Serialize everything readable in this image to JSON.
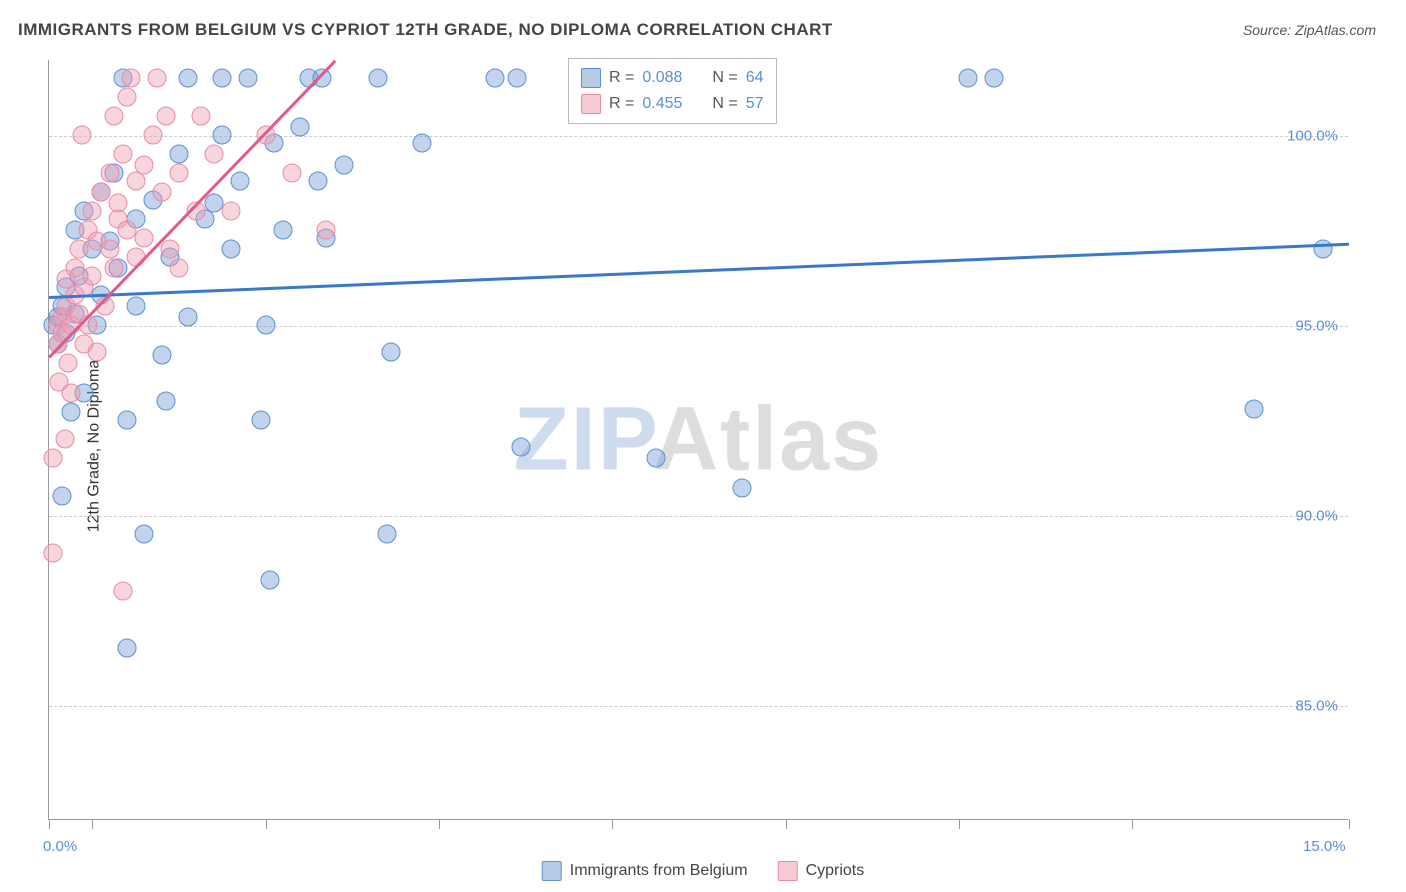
{
  "title": "IMMIGRANTS FROM BELGIUM VS CYPRIOT 12TH GRADE, NO DIPLOMA CORRELATION CHART",
  "source_label": "Source: ZipAtlas.com",
  "ylabel": "12th Grade, No Diploma",
  "watermark": {
    "part1": "ZIP",
    "part2": "Atlas"
  },
  "chart": {
    "type": "scatter",
    "background_color": "#ffffff",
    "grid_color": "#cccccc",
    "axis_color": "#999999",
    "xlim": [
      0,
      15
    ],
    "ylim": [
      82,
      102
    ],
    "xtick_positions": [
      0,
      0.5,
      2.5,
      4.5,
      6.5,
      8.5,
      10.5,
      12.5,
      15
    ],
    "xaxis_labels": [
      {
        "value": 0,
        "text": "0.0%"
      },
      {
        "value": 15,
        "text": "15.0%"
      }
    ],
    "ytick_labels": [
      {
        "value": 85,
        "text": "85.0%"
      },
      {
        "value": 90,
        "text": "90.0%"
      },
      {
        "value": 95,
        "text": "95.0%"
      },
      {
        "value": 100,
        "text": "100.0%"
      }
    ],
    "series": [
      {
        "name": "Immigrants from Belgium",
        "color": "#5b8fd6",
        "fill": "rgba(120,160,210,0.45)",
        "marker_radius": 9.5,
        "R": "0.088",
        "N": "64",
        "trend": {
          "x1": 0,
          "y1": 95.8,
          "x2": 15,
          "y2": 97.2,
          "color": "#3b78c9",
          "width": 2.5
        },
        "points": [
          [
            0.05,
            95.0
          ],
          [
            0.1,
            94.5
          ],
          [
            0.1,
            95.2
          ],
          [
            0.15,
            90.5
          ],
          [
            0.15,
            95.5
          ],
          [
            0.2,
            96.0
          ],
          [
            0.2,
            94.8
          ],
          [
            0.25,
            92.7
          ],
          [
            0.3,
            97.5
          ],
          [
            0.3,
            95.3
          ],
          [
            0.35,
            96.3
          ],
          [
            0.4,
            93.2
          ],
          [
            0.4,
            98.0
          ],
          [
            0.5,
            97.0
          ],
          [
            0.55,
            95.0
          ],
          [
            0.6,
            95.8
          ],
          [
            0.6,
            98.5
          ],
          [
            0.7,
            97.2
          ],
          [
            0.75,
            99.0
          ],
          [
            0.8,
            96.5
          ],
          [
            0.85,
            101.5
          ],
          [
            0.9,
            86.5
          ],
          [
            0.9,
            92.5
          ],
          [
            1.0,
            97.8
          ],
          [
            1.0,
            95.5
          ],
          [
            1.1,
            89.5
          ],
          [
            1.2,
            98.3
          ],
          [
            1.3,
            94.2
          ],
          [
            1.35,
            93.0
          ],
          [
            1.4,
            96.8
          ],
          [
            1.5,
            99.5
          ],
          [
            1.6,
            101.5
          ],
          [
            1.6,
            95.2
          ],
          [
            1.8,
            97.8
          ],
          [
            1.9,
            98.2
          ],
          [
            2.0,
            101.5
          ],
          [
            2.0,
            100.0
          ],
          [
            2.1,
            97.0
          ],
          [
            2.2,
            98.8
          ],
          [
            2.3,
            101.5
          ],
          [
            2.45,
            92.5
          ],
          [
            2.5,
            95.0
          ],
          [
            2.55,
            88.3
          ],
          [
            2.6,
            99.8
          ],
          [
            2.7,
            97.5
          ],
          [
            2.9,
            100.2
          ],
          [
            3.0,
            101.5
          ],
          [
            3.1,
            98.8
          ],
          [
            3.15,
            101.5
          ],
          [
            3.2,
            97.3
          ],
          [
            3.4,
            99.2
          ],
          [
            3.8,
            101.5
          ],
          [
            3.9,
            89.5
          ],
          [
            3.95,
            94.3
          ],
          [
            4.3,
            99.8
          ],
          [
            5.15,
            101.5
          ],
          [
            5.4,
            101.5
          ],
          [
            5.45,
            91.8
          ],
          [
            7.0,
            91.5
          ],
          [
            8.0,
            90.7
          ],
          [
            10.6,
            101.5
          ],
          [
            10.9,
            101.5
          ],
          [
            13.9,
            92.8
          ],
          [
            14.7,
            97.0
          ]
        ]
      },
      {
        "name": "Cypriots",
        "color": "#e88ba5",
        "fill": "rgba(240,160,180,0.45)",
        "marker_radius": 9.5,
        "R": "0.455",
        "N": "57",
        "trend": {
          "x1": 0,
          "y1": 94.2,
          "x2": 3.3,
          "y2": 102,
          "color": "#e25a87",
          "width": 2.5
        },
        "points": [
          [
            0.05,
            89.0
          ],
          [
            0.05,
            91.5
          ],
          [
            0.1,
            94.5
          ],
          [
            0.1,
            95.0
          ],
          [
            0.12,
            93.5
          ],
          [
            0.15,
            95.2
          ],
          [
            0.15,
            94.8
          ],
          [
            0.18,
            92.0
          ],
          [
            0.2,
            95.5
          ],
          [
            0.2,
            96.2
          ],
          [
            0.22,
            94.0
          ],
          [
            0.25,
            95.0
          ],
          [
            0.25,
            93.2
          ],
          [
            0.3,
            96.5
          ],
          [
            0.3,
            95.8
          ],
          [
            0.35,
            97.0
          ],
          [
            0.35,
            95.3
          ],
          [
            0.38,
            100.0
          ],
          [
            0.4,
            94.5
          ],
          [
            0.4,
            96.0
          ],
          [
            0.45,
            97.5
          ],
          [
            0.45,
            95.0
          ],
          [
            0.5,
            98.0
          ],
          [
            0.5,
            96.3
          ],
          [
            0.55,
            97.2
          ],
          [
            0.55,
            94.3
          ],
          [
            0.6,
            98.5
          ],
          [
            0.65,
            95.5
          ],
          [
            0.7,
            99.0
          ],
          [
            0.7,
            97.0
          ],
          [
            0.75,
            100.5
          ],
          [
            0.75,
            96.5
          ],
          [
            0.8,
            98.2
          ],
          [
            0.8,
            97.8
          ],
          [
            0.85,
            99.5
          ],
          [
            0.85,
            88.0
          ],
          [
            0.9,
            101.0
          ],
          [
            0.9,
            97.5
          ],
          [
            0.95,
            101.5
          ],
          [
            1.0,
            98.8
          ],
          [
            1.0,
            96.8
          ],
          [
            1.1,
            99.2
          ],
          [
            1.1,
            97.3
          ],
          [
            1.2,
            100.0
          ],
          [
            1.25,
            101.5
          ],
          [
            1.3,
            98.5
          ],
          [
            1.35,
            100.5
          ],
          [
            1.4,
            97.0
          ],
          [
            1.5,
            99.0
          ],
          [
            1.5,
            96.5
          ],
          [
            1.7,
            98.0
          ],
          [
            1.75,
            100.5
          ],
          [
            1.9,
            99.5
          ],
          [
            2.1,
            98.0
          ],
          [
            2.5,
            100.0
          ],
          [
            2.8,
            99.0
          ],
          [
            3.2,
            97.5
          ]
        ]
      }
    ],
    "legend_top": {
      "rows": [
        {
          "swatch": "blue",
          "R_label": "R =",
          "R": "0.088",
          "N_label": "N =",
          "N": "64"
        },
        {
          "swatch": "pink",
          "R_label": "R =",
          "R": "0.455",
          "N_label": "N =",
          "N": "57"
        }
      ]
    },
    "legend_bottom": [
      {
        "swatch": "blue",
        "label": "Immigrants from Belgium"
      },
      {
        "swatch": "pink",
        "label": "Cypriots"
      }
    ]
  }
}
